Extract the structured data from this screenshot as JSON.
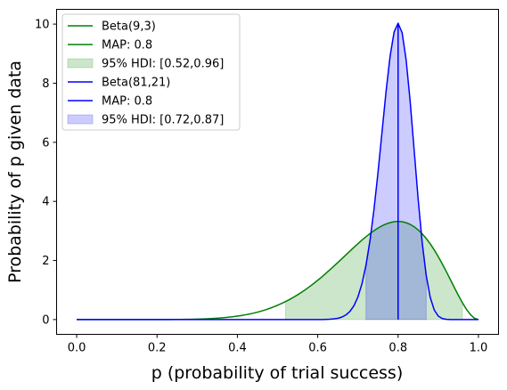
{
  "chart_data": {
    "type": "line",
    "title": "",
    "xlabel": "p (probability of trial success)",
    "ylabel": "Probability of p given data",
    "xlim": [
      -0.05,
      1.05
    ],
    "ylim": [
      -0.5,
      10.5
    ],
    "xticks": [
      0.0,
      0.2,
      0.4,
      0.6,
      0.8,
      1.0
    ],
    "xtick_labels": [
      "0.0",
      "0.2",
      "0.4",
      "0.6",
      "0.8",
      "1.0"
    ],
    "yticks": [
      0,
      2,
      4,
      6,
      8,
      10
    ],
    "ytick_labels": [
      "0",
      "2",
      "4",
      "6",
      "8",
      "10"
    ],
    "grid": false,
    "legend_position": "top-left",
    "series": [
      {
        "name": "Beta(9,3)",
        "color": "#008000",
        "alpha": 9,
        "beta": 3,
        "map": {
          "name": "MAP: 0.8",
          "x": 0.8
        },
        "hdi": {
          "name": "95% HDI: [0.52,0.96]",
          "range": [
            0.52,
            0.96
          ],
          "color": "#008000",
          "opacity": 0.2
        }
      },
      {
        "name": "Beta(81,21)",
        "color": "#0000ff",
        "alpha": 81,
        "beta": 21,
        "map": {
          "name": "MAP: 0.8",
          "x": 0.8
        },
        "hdi": {
          "name": "95% HDI: [0.72,0.87]",
          "range": [
            0.72,
            0.87
          ],
          "color": "#0000ff",
          "opacity": 0.2
        }
      }
    ]
  }
}
